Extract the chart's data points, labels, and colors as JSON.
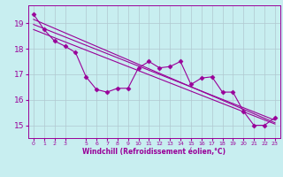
{
  "xlabel": "Windchill (Refroidissement éolien,°C)",
  "background_color": "#c8eef0",
  "grid_color": "#b0c8d0",
  "line_color": "#990099",
  "x_ticks": [
    0,
    1,
    2,
    3,
    5,
    6,
    7,
    8,
    9,
    10,
    11,
    12,
    13,
    14,
    15,
    16,
    17,
    18,
    19,
    20,
    21,
    22,
    23
  ],
  "xlim": [
    -0.5,
    23.5
  ],
  "ylim": [
    14.5,
    19.7
  ],
  "yticks": [
    15,
    16,
    17,
    18,
    19
  ],
  "line1_x": [
    0,
    1,
    2,
    3,
    4,
    5,
    6,
    7,
    8,
    9,
    10,
    11,
    12,
    13,
    14,
    15,
    16,
    17,
    18,
    19,
    20,
    21,
    22,
    23
  ],
  "line1_y": [
    19.35,
    18.75,
    18.3,
    18.1,
    17.85,
    16.9,
    16.4,
    16.3,
    16.45,
    16.45,
    17.25,
    17.5,
    17.25,
    17.3,
    17.5,
    16.6,
    16.85,
    16.9,
    16.3,
    16.3,
    15.55,
    15.0,
    15.0,
    15.3
  ],
  "line2_x": [
    0,
    23
  ],
  "line2_y": [
    19.15,
    15.1
  ],
  "line3_x": [
    0,
    23
  ],
  "line3_y": [
    18.95,
    15.2
  ],
  "line4_x": [
    0,
    23
  ],
  "line4_y": [
    18.75,
    15.05
  ]
}
